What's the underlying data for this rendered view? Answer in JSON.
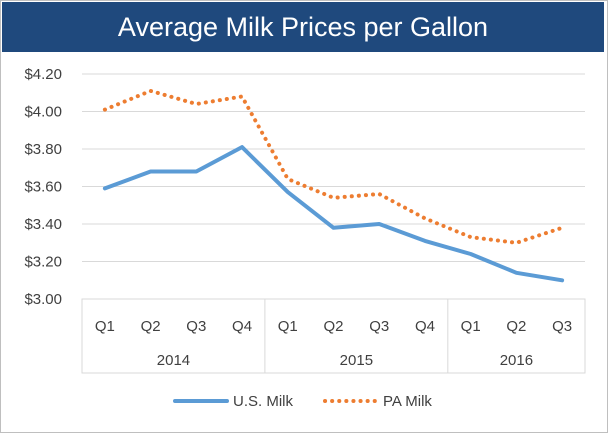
{
  "chart_data": {
    "type": "line",
    "title": "Average Milk Prices per Gallon",
    "xlabel": "",
    "ylabel": "",
    "ylim": [
      3.0,
      4.2
    ],
    "yticks": [
      "$3.00",
      "$3.20",
      "$3.40",
      "$3.60",
      "$3.80",
      "$4.00",
      "$4.20"
    ],
    "ytick_values": [
      3.0,
      3.2,
      3.4,
      3.6,
      3.8,
      4.0,
      4.2
    ],
    "categories": [
      "Q1",
      "Q2",
      "Q3",
      "Q4",
      "Q1",
      "Q2",
      "Q3",
      "Q4",
      "Q1",
      "Q2",
      "Q3"
    ],
    "groups": [
      {
        "label": "2014",
        "count": 4
      },
      {
        "label": "2015",
        "count": 4
      },
      {
        "label": "2016",
        "count": 3
      }
    ],
    "grid": true,
    "legend_position": "bottom",
    "series": [
      {
        "name": "U.S. Milk",
        "color": "#5b9bd5",
        "style": "solid",
        "values": [
          3.59,
          3.68,
          3.68,
          3.81,
          3.57,
          3.38,
          3.4,
          3.31,
          3.24,
          3.14,
          3.1
        ]
      },
      {
        "name": "PA Milk",
        "color": "#ed7d31",
        "style": "dotted",
        "values": [
          4.01,
          4.11,
          4.04,
          4.08,
          3.64,
          3.54,
          3.56,
          3.43,
          3.33,
          3.3,
          3.38
        ]
      }
    ]
  }
}
